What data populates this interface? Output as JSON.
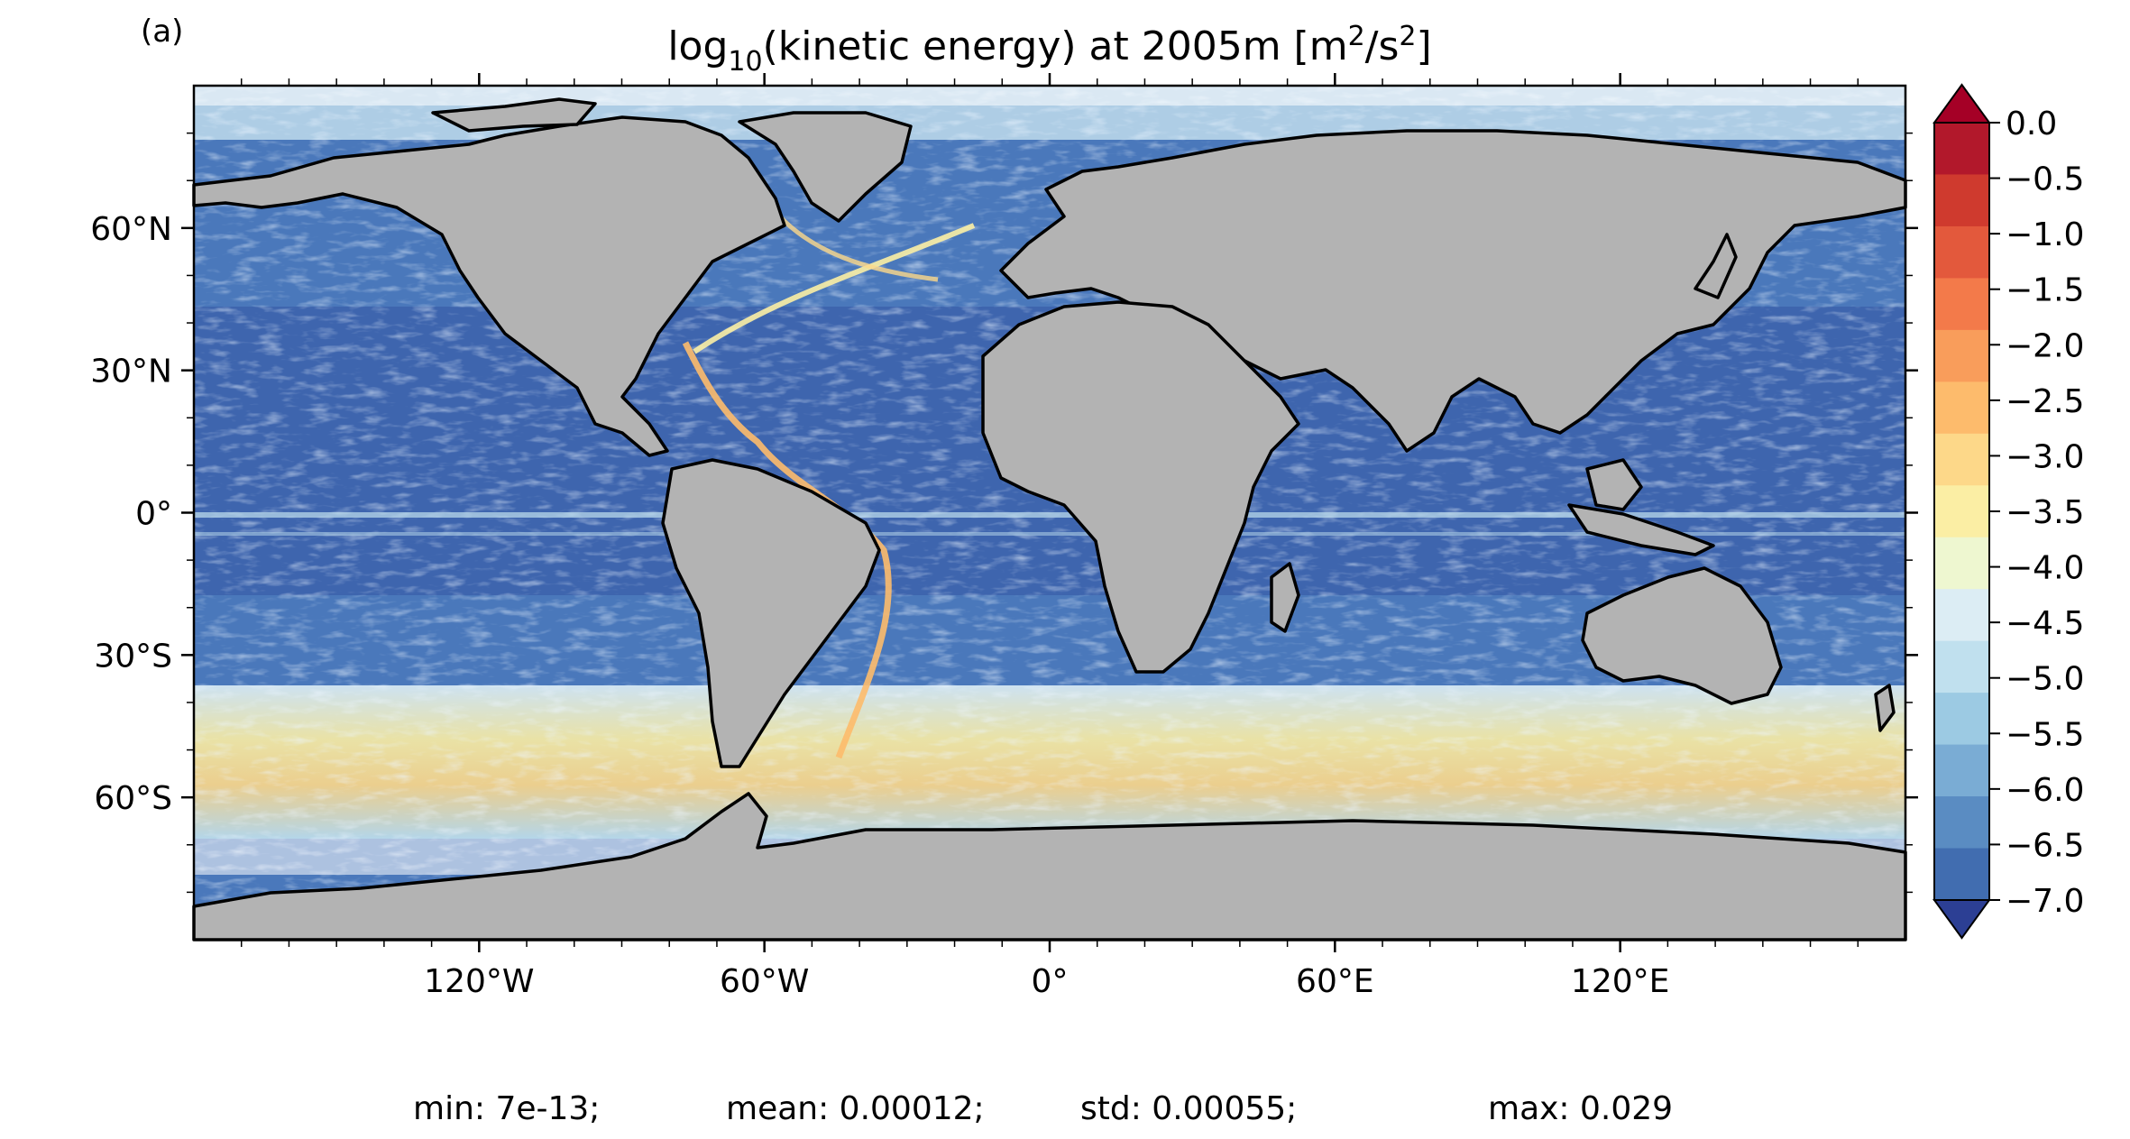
{
  "panel_label": "(a)",
  "title": {
    "prefix": "log",
    "subscript": "10",
    "middle": "(kinetic energy) at 2005m [m",
    "sup1": "2",
    "slash": "/s",
    "sup2": "2",
    "suffix": "]"
  },
  "map": {
    "projection": "plate-carree",
    "lon_range": [
      -180,
      180
    ],
    "lat_range": [
      -90,
      90
    ],
    "x_ticks": [
      {
        "lon": -120,
        "label": "120°W"
      },
      {
        "lon": -60,
        "label": "60°W"
      },
      {
        "lon": 0,
        "label": "0°"
      },
      {
        "lon": 60,
        "label": "60°E"
      },
      {
        "lon": 120,
        "label": "120°E"
      }
    ],
    "y_ticks": [
      {
        "lat": 60,
        "label": "60°N"
      },
      {
        "lat": 30,
        "label": "30°N"
      },
      {
        "lat": 0,
        "label": "0°"
      },
      {
        "lat": -30,
        "label": "30°S"
      },
      {
        "lat": -60,
        "label": "60°S"
      }
    ],
    "land_color": "#b3b3b3",
    "coast_color": "#000000"
  },
  "colorbar": {
    "min": -7.0,
    "max": 0.0,
    "step": 0.5,
    "extend": "both",
    "tick_labels": [
      "0.0",
      "−0.5",
      "−1.0",
      "−1.5",
      "−2.0",
      "−2.5",
      "−3.0",
      "−3.5",
      "−4.0",
      "−4.5",
      "−5.0",
      "−5.5",
      "−6.0",
      "−6.5",
      "−7.0"
    ],
    "colors_top_to_bottom": [
      "#b2182b",
      "#cf3a2e",
      "#e3593c",
      "#f37a4a",
      "#f99d5b",
      "#fdbb6c",
      "#fdd889",
      "#fbeea4",
      "#eef7d0",
      "#dcedf4",
      "#c0e0ee",
      "#9ccae3",
      "#7aacd4",
      "#5a8cc2",
      "#416db0"
    ],
    "low_extend_color": "#2c3f94",
    "high_extend_color": "#a50026"
  },
  "stats": {
    "min": "min: 7e-13;",
    "mean": "mean: 0.00012;",
    "std": "std: 0.00055;",
    "max": "max: 0.029"
  }
}
